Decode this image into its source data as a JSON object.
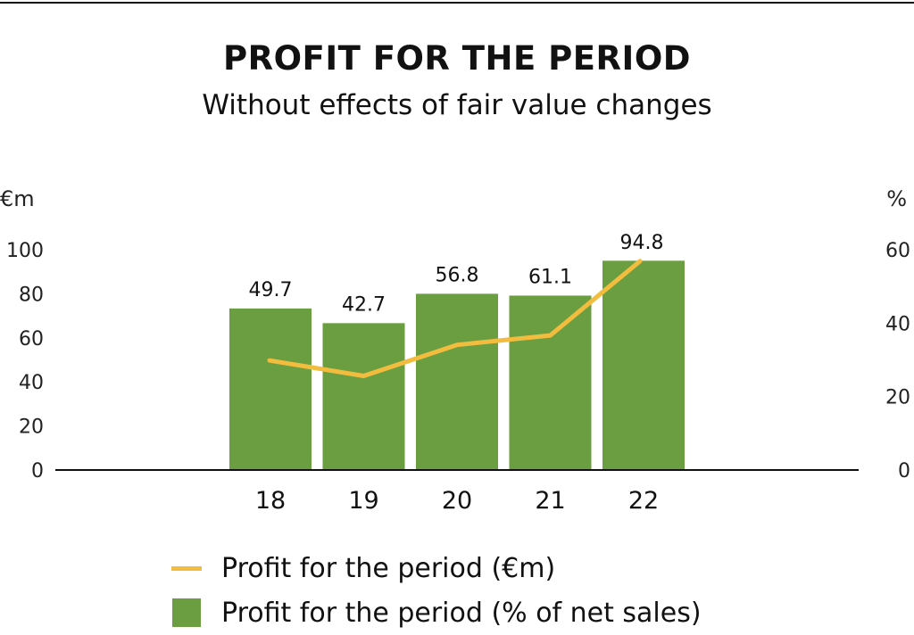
{
  "chart_data": {
    "type": "bar",
    "title": "PROFIT FOR THE PERIOD",
    "subtitle": "Without effects of fair value changes",
    "categories": [
      "18",
      "19",
      "20",
      "21",
      "22"
    ],
    "y_left": {
      "unit": "€m",
      "ticks": [
        "0",
        "20",
        "40",
        "60",
        "80",
        "100"
      ],
      "range": [
        0,
        100
      ]
    },
    "y_right": {
      "unit": "%",
      "ticks": [
        "0",
        "20",
        "40",
        "60"
      ],
      "range": [
        0,
        60
      ]
    },
    "series": [
      {
        "name": "Profit for the period (€m)",
        "type": "line",
        "axis": "left",
        "color": "#F2BC3E",
        "values": [
          49.7,
          42.7,
          56.8,
          61.1,
          94.8
        ]
      },
      {
        "name": "Profit for the period (% of net sales)",
        "type": "bar",
        "axis": "right",
        "color": "#6A9E41",
        "values": [
          44,
          40,
          48,
          47.5,
          57
        ]
      }
    ],
    "data_labels": [
      "49.7",
      "42.7",
      "56.8",
      "61.1",
      "94.8"
    ],
    "grid": false,
    "legend_position": "bottom"
  }
}
